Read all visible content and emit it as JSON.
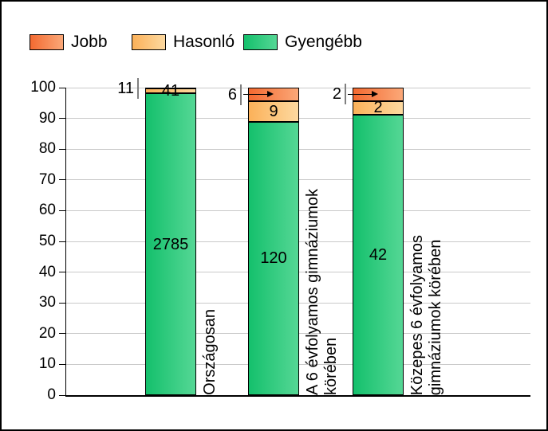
{
  "colors": {
    "background": "#FFFFFF",
    "frame_border": "#000000",
    "axis": "#000000",
    "grid": "#C9C9C9",
    "leader_line": "#808080",
    "text": "#000000"
  },
  "chart_data": {
    "type": "bar",
    "stacking": "percent",
    "orientation": "vertical",
    "title": "",
    "xlabel": "",
    "ylabel": "",
    "ylim": [
      0,
      100
    ],
    "yticks": [
      0,
      10,
      20,
      30,
      40,
      50,
      60,
      70,
      80,
      90,
      100
    ],
    "grid": true,
    "legend_position": "top-left",
    "categories": [
      {
        "label": "Országosan",
        "lines": [
          "Országosan"
        ]
      },
      {
        "label": "A 6 évfolyamos gimnáziumok körében",
        "lines": [
          "A 6 évfolyamos gimnáziumok",
          "körében"
        ]
      },
      {
        "label": "Közepes 6 évfolyamos gimnáziumok körében",
        "lines": [
          "Közepes 6 évfolyamos",
          "gimnáziumok körében"
        ]
      }
    ],
    "series": [
      {
        "name": "Jobb",
        "values": [
          11,
          6,
          2
        ],
        "color_start": "#F36A31",
        "color_end": "#FBA878",
        "label_placement": "outside-left"
      },
      {
        "name": "Hasonló",
        "values": [
          41,
          9,
          2
        ],
        "color_start": "#FBB159",
        "color_end": "#FDD9A0",
        "label_placement": "inside"
      },
      {
        "name": "Gyengébb",
        "values": [
          2785,
          120,
          42
        ],
        "color_start": "#14C06C",
        "color_end": "#55D795",
        "label_placement": "inside"
      }
    ]
  }
}
